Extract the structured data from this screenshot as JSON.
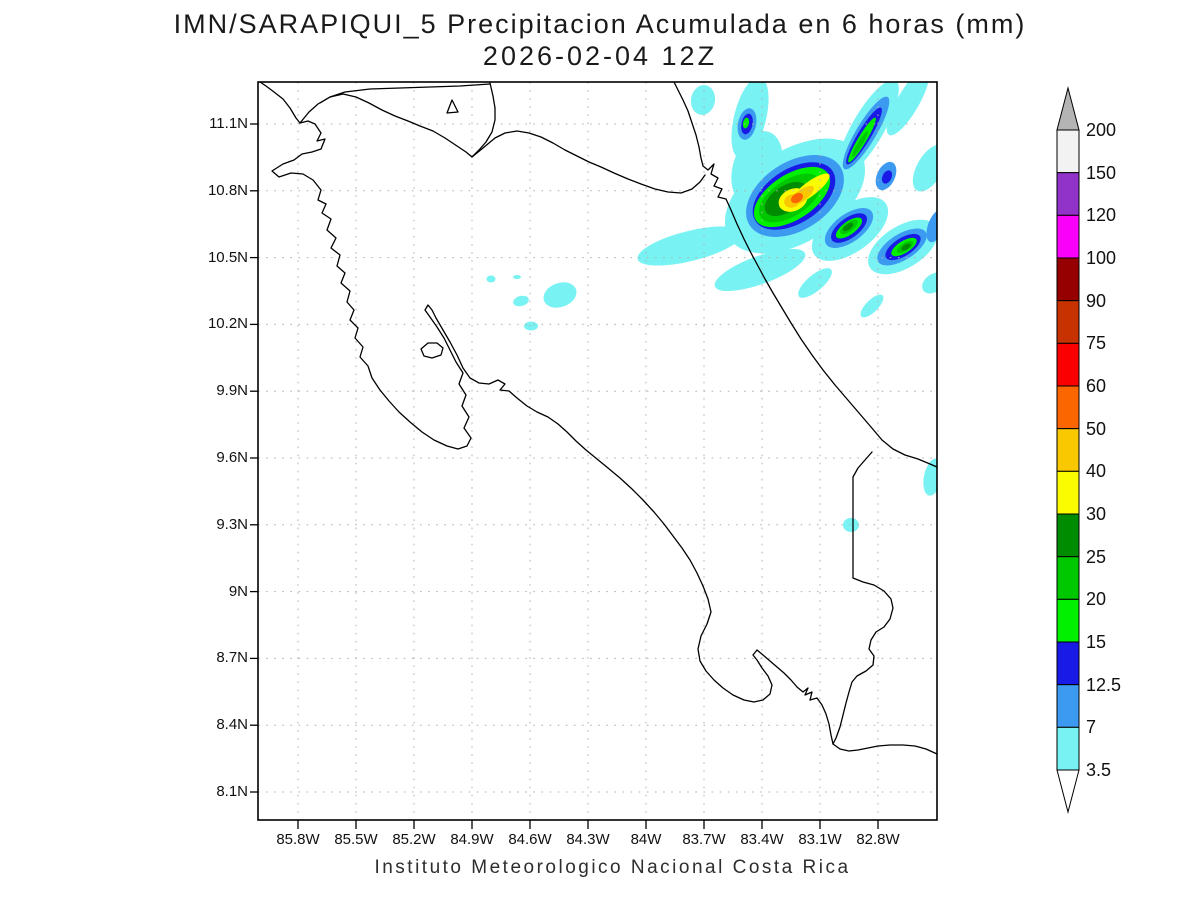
{
  "title": {
    "line1": "IMN/SARAPIQUI_5 Precipitacion Acumulada en 6 horas (mm)",
    "line2": "2026-02-04 12Z"
  },
  "footer": "Instituto Meteorologico Nacional Costa Rica",
  "axes": {
    "lat_labels": [
      "11.1N",
      "10.8N",
      "10.5N",
      "10.2N",
      "9.9N",
      "9.6N",
      "9.3N",
      "9N",
      "8.7N",
      "8.4N",
      "8.1N"
    ],
    "lon_labels": [
      "85.8W",
      "85.5W",
      "85.2W",
      "84.9W",
      "84.6W",
      "84.3W",
      "84W",
      "83.7W",
      "83.4W",
      "83.1W",
      "82.8W"
    ]
  },
  "colorbar": {
    "levels": [
      "200",
      "150",
      "120",
      "100",
      "90",
      "75",
      "60",
      "50",
      "40",
      "30",
      "25",
      "20",
      "15",
      "12.5",
      "7",
      "3.5"
    ],
    "colors": [
      "#f2f2f2",
      "#9132c8",
      "#fa00fa",
      "#960000",
      "#c83200",
      "#fa0000",
      "#fc6600",
      "#fac800",
      "#fcfc00",
      "#008c00",
      "#00c800",
      "#00f000",
      "#1a1ae6",
      "#3c9af0",
      "#78f2f2"
    ],
    "arrow_top_color": "#b4b4b4",
    "arrow_bottom_color": "#ffffff",
    "units": "mm"
  },
  "colors": {
    "background": "#ffffff",
    "coastline": "#000000",
    "grid": "#b0b0b0",
    "frame": "#000000"
  },
  "map_data": {
    "type": "filled_contour_precipitation_map",
    "region": "Costa Rica",
    "extent": {
      "lon_west": "86.0W",
      "lon_east": "82.5W",
      "lat_south": "8.0N",
      "lat_north": "11.3N"
    },
    "units": "mm",
    "precipitation_cells": [
      {
        "name": "main-cell",
        "approx_lat": "10.77N",
        "approx_lon": "83.22W",
        "peak_range_mm": "50-60"
      },
      {
        "name": "ne-band",
        "approx_lat": "11.05N",
        "approx_lon": "82.87W",
        "peak_range_mm": "20-25"
      },
      {
        "name": "nw-cell",
        "approx_lat": "11.10N",
        "approx_lon": "83.48W",
        "peak_range_mm": "15-20"
      },
      {
        "name": "se-cell-1",
        "approx_lat": "10.65N",
        "approx_lon": "82.96W",
        "peak_range_mm": "25-30"
      },
      {
        "name": "se-cell-2",
        "approx_lat": "10.55N",
        "approx_lon": "82.66W",
        "peak_range_mm": "25-30"
      },
      {
        "name": "light-patches-central",
        "approx_lat": "10.35N",
        "approx_lon": "84.45W",
        "peak_range_mm": "3.5-7"
      },
      {
        "name": "light-patch-caribbean-south",
        "approx_lat": "9.30N",
        "approx_lon": "82.73W",
        "peak_range_mm": "3.5-7"
      }
    ]
  }
}
